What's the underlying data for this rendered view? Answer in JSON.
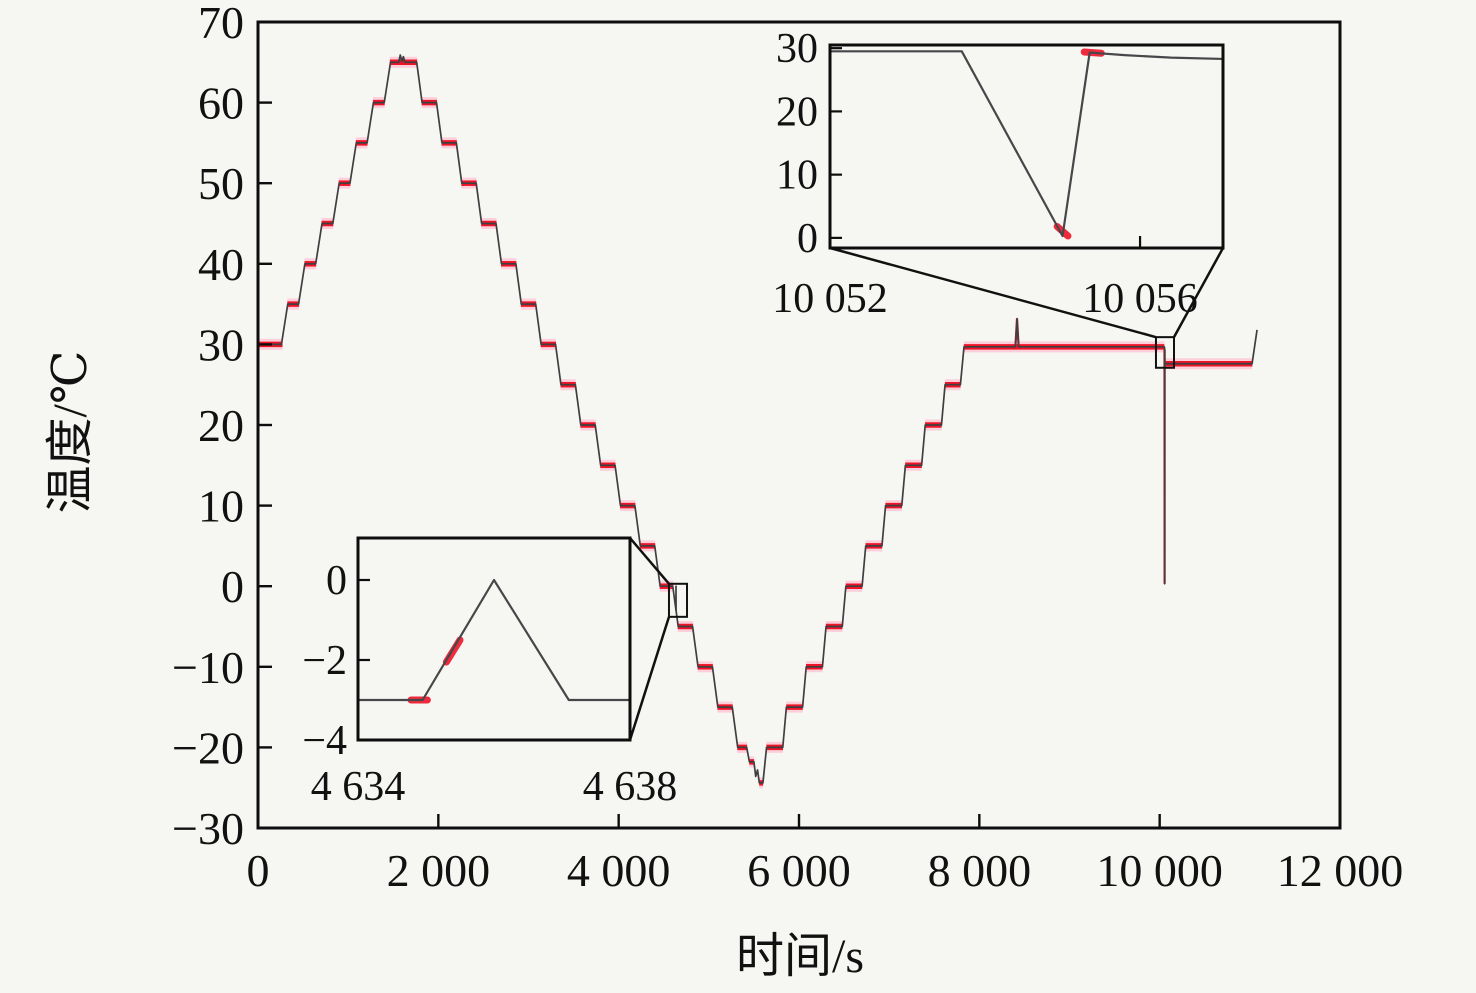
{
  "figure": {
    "background": "#f6f6f3",
    "frame_color": "#0d0d0d",
    "line_color": "#3f3f41",
    "marker_red": "#ee1428",
    "marker_glow": "#ffc2d2",
    "text_color": "#111111"
  },
  "chart_data": {
    "type": "line",
    "title": "",
    "xlabel": "时间/s",
    "ylabel": "温度/℃",
    "xlim": [
      0,
      12000
    ],
    "ylim": [
      -30,
      70
    ],
    "grid": false,
    "legend": "none",
    "x_ticks": [
      {
        "value": 0,
        "label": "0"
      },
      {
        "value": 2000,
        "label": "2 000"
      },
      {
        "value": 4000,
        "label": "4 000"
      },
      {
        "value": 6000,
        "label": "6 000"
      },
      {
        "value": 8000,
        "label": "8 000"
      },
      {
        "value": 10000,
        "label": "10 000"
      },
      {
        "value": 12000,
        "label": "12 000"
      }
    ],
    "y_ticks": [
      {
        "value": 70,
        "label": "70"
      },
      {
        "value": 60,
        "label": "60"
      },
      {
        "value": 50,
        "label": "50"
      },
      {
        "value": 40,
        "label": "40"
      },
      {
        "value": 30,
        "label": "30"
      },
      {
        "value": 20,
        "label": "20"
      },
      {
        "value": 10,
        "label": "10"
      },
      {
        "value": 0,
        "label": "0"
      },
      {
        "value": -10,
        "label": "−10"
      },
      {
        "value": -20,
        "label": "−20"
      },
      {
        "value": -30,
        "label": "−30"
      }
    ],
    "series": [
      {
        "name": "temperature-profile",
        "points": [
          [
            0,
            30
          ],
          [
            260,
            30
          ],
          [
            330,
            35
          ],
          [
            450,
            35
          ],
          [
            520,
            40
          ],
          [
            640,
            40
          ],
          [
            710,
            45
          ],
          [
            830,
            45
          ],
          [
            900,
            50
          ],
          [
            1020,
            50
          ],
          [
            1090,
            55
          ],
          [
            1210,
            55
          ],
          [
            1280,
            60
          ],
          [
            1400,
            60
          ],
          [
            1470,
            65
          ],
          [
            1560,
            65
          ],
          [
            1578,
            65.9
          ],
          [
            1596,
            65.1
          ],
          [
            1612,
            65.7
          ],
          [
            1630,
            65
          ],
          [
            1760,
            65
          ],
          [
            1820,
            60
          ],
          [
            1980,
            60
          ],
          [
            2040,
            55
          ],
          [
            2200,
            55
          ],
          [
            2260,
            50
          ],
          [
            2420,
            50
          ],
          [
            2480,
            45
          ],
          [
            2640,
            45
          ],
          [
            2700,
            40
          ],
          [
            2860,
            40
          ],
          [
            2920,
            35
          ],
          [
            3080,
            35
          ],
          [
            3140,
            30
          ],
          [
            3300,
            30
          ],
          [
            3360,
            25
          ],
          [
            3520,
            25
          ],
          [
            3580,
            20
          ],
          [
            3740,
            20
          ],
          [
            3800,
            15
          ],
          [
            3960,
            15
          ],
          [
            4020,
            10
          ],
          [
            4180,
            10
          ],
          [
            4240,
            5
          ],
          [
            4400,
            5
          ],
          [
            4460,
            0
          ],
          [
            4600,
            0
          ],
          [
            4634,
            -2.85
          ],
          [
            4635,
            -3
          ],
          [
            4636,
            0
          ],
          [
            4637,
            -3.05
          ],
          [
            4660,
            -5
          ],
          [
            4820,
            -5
          ],
          [
            4880,
            -10
          ],
          [
            5040,
            -10
          ],
          [
            5100,
            -15
          ],
          [
            5260,
            -15
          ],
          [
            5320,
            -20
          ],
          [
            5420,
            -20
          ],
          [
            5450,
            -21.8
          ],
          [
            5500,
            -21.8
          ],
          [
            5520,
            -23.6
          ],
          [
            5540,
            -22.8
          ],
          [
            5560,
            -24.4
          ],
          [
            5600,
            -24.4
          ],
          [
            5640,
            -20
          ],
          [
            5820,
            -20
          ],
          [
            5860,
            -15
          ],
          [
            6040,
            -15
          ],
          [
            6080,
            -10
          ],
          [
            6260,
            -10
          ],
          [
            6300,
            -5
          ],
          [
            6480,
            -5
          ],
          [
            6520,
            0
          ],
          [
            6700,
            0
          ],
          [
            6740,
            5
          ],
          [
            6920,
            5
          ],
          [
            6960,
            10
          ],
          [
            7140,
            10
          ],
          [
            7180,
            15
          ],
          [
            7360,
            15
          ],
          [
            7400,
            20
          ],
          [
            7580,
            20
          ],
          [
            7620,
            25
          ],
          [
            7790,
            25
          ],
          [
            7830,
            29.7
          ],
          [
            8400,
            29.7
          ],
          [
            8418,
            33.2
          ],
          [
            8436,
            29.7
          ],
          [
            10052,
            29.7
          ],
          [
            10053.7,
            29.5
          ],
          [
            10055,
            0.3
          ],
          [
            10055.4,
            29.3
          ],
          [
            10055.8,
            28.8
          ],
          [
            10056.5,
            27.6
          ],
          [
            11025,
            27.6
          ],
          [
            11080,
            31.8
          ]
        ]
      }
    ],
    "plateau_marker_segments": [
      [
        0,
        272,
        30
      ],
      [
        325,
        455,
        35
      ],
      [
        515,
        645,
        40
      ],
      [
        705,
        835,
        45
      ],
      [
        895,
        1025,
        50
      ],
      [
        1085,
        1215,
        55
      ],
      [
        1275,
        1405,
        60
      ],
      [
        1462,
        1765,
        65
      ],
      [
        1815,
        1985,
        60
      ],
      [
        2035,
        2205,
        55
      ],
      [
        2255,
        2425,
        50
      ],
      [
        2475,
        2645,
        45
      ],
      [
        2695,
        2865,
        40
      ],
      [
        2915,
        3085,
        35
      ],
      [
        3135,
        3305,
        30
      ],
      [
        3355,
        3525,
        25
      ],
      [
        3575,
        3745,
        20
      ],
      [
        3795,
        3965,
        15
      ],
      [
        4015,
        4185,
        10
      ],
      [
        4235,
        4405,
        5
      ],
      [
        4455,
        4605,
        0
      ],
      [
        4655,
        4825,
        -5
      ],
      [
        4875,
        5045,
        -10
      ],
      [
        5095,
        5265,
        -15
      ],
      [
        5315,
        5425,
        -20
      ],
      [
        5448,
        5502,
        -21.8
      ],
      [
        5558,
        5602,
        -24.4
      ],
      [
        5638,
        5822,
        -20
      ],
      [
        5858,
        6042,
        -15
      ],
      [
        6078,
        6262,
        -10
      ],
      [
        6298,
        6482,
        -5
      ],
      [
        6518,
        6702,
        0
      ],
      [
        6738,
        6922,
        5
      ],
      [
        6958,
        7142,
        10
      ],
      [
        7178,
        7362,
        15
      ],
      [
        7398,
        7582,
        20
      ],
      [
        7618,
        7792,
        25
      ],
      [
        7828,
        10052,
        29.7
      ],
      [
        10056.4,
        11028,
        27.6
      ]
    ],
    "red_overlay_polylines": [
      [
        [
          10053.7,
          29.5
        ],
        [
          10055,
          0.3
        ],
        [
          10055.4,
          29.3
        ]
      ],
      [
        [
          8400,
          29.7
        ],
        [
          8418,
          33.2
        ],
        [
          8436,
          29.7
        ]
      ]
    ],
    "zoom_rects": [
      {
        "name": "glitch-window-descent",
        "t1": 4558,
        "t2": 4758,
        "T_top": 0.3,
        "T_bottom": -3.8
      },
      {
        "name": "glitch-window-hold",
        "t1": 9959,
        "t2": 10159,
        "T_top": 30.9,
        "T_bottom": 27.1
      }
    ],
    "insets": [
      {
        "name": "inset-descent-glitch",
        "xlim": [
          4634,
          4638
        ],
        "ylim": [
          -4,
          1.05
        ],
        "x_ticks": [
          {
            "value": 4634,
            "label": "4 634",
            "tick": false
          },
          {
            "value": 4638,
            "label": "4 638",
            "tick": false
          }
        ],
        "y_ticks": [
          {
            "value": 0,
            "label": "0"
          },
          {
            "value": -2,
            "label": "−2"
          },
          {
            "value": -4,
            "label": "−4"
          }
        ],
        "points": [
          [
            4634,
            -3
          ],
          [
            4634.95,
            -3
          ],
          [
            4636,
            0
          ],
          [
            4637.1,
            -3
          ],
          [
            4638,
            -3
          ]
        ],
        "marker_segments": [
          [
            [
              4634.78,
              -3
            ],
            [
              4635.02,
              -3
            ]
          ],
          [
            [
              4635.3,
              -2.05
            ],
            [
              4635.5,
              -1.5
            ]
          ]
        ]
      },
      {
        "name": "inset-hold-glitch",
        "xlim": [
          10052,
          10057.07
        ],
        "ylim": [
          -1.6,
          30.5
        ],
        "x_ticks": [
          {
            "value": 10052,
            "label": "10 052",
            "tick": false
          },
          {
            "value": 10056,
            "label": "10 056",
            "tick": true
          }
        ],
        "y_ticks": [
          {
            "value": 30,
            "label": "30"
          },
          {
            "value": 20,
            "label": "20"
          },
          {
            "value": 10,
            "label": "10"
          },
          {
            "value": 0,
            "label": "0"
          }
        ],
        "points": [
          [
            10052,
            29.5
          ],
          [
            10053.7,
            29.5
          ],
          [
            10055,
            0.3
          ],
          [
            10055.35,
            29.3
          ],
          [
            10055.8,
            28.9
          ],
          [
            10056.4,
            28.5
          ],
          [
            10057.07,
            28.3
          ]
        ],
        "marker_segments": [
          [
            [
              10054.93,
              1.8
            ],
            [
              10055.07,
              0.3
            ]
          ],
          [
            [
              10055.28,
              29.4
            ],
            [
              10055.5,
              29.2
            ]
          ]
        ]
      }
    ]
  }
}
